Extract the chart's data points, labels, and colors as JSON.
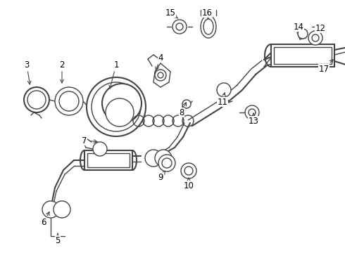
{
  "bg_color": "#ffffff",
  "line_color": "#444444",
  "text_color": "#000000",
  "fig_width": 4.9,
  "fig_height": 3.6,
  "dpi": 100,
  "font_size": 8.5
}
